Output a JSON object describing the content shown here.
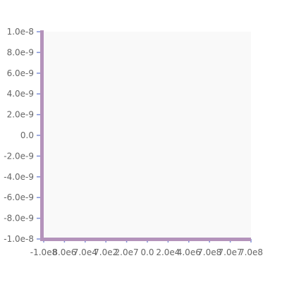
{
  "chart_data": {
    "type": "scatter",
    "title": "",
    "xlabel": "",
    "ylabel": "",
    "x": [],
    "y": [],
    "xlim": [
      -1e-08,
      1e-08
    ],
    "ylim": [
      -1e-08,
      1e-08
    ],
    "x_tick_labels": [
      "-1.0e8",
      "8.0e6",
      "7.0e4",
      "7.0e2",
      "2.0e7",
      "0.0",
      "2.0e4",
      "4.0e6",
      "7.0e8",
      "7.0e7",
      "7.0e8"
    ],
    "y_tick_labels": [
      "1.0e-8",
      "8.0e-9",
      "6.0e-9",
      "4.0e-9",
      "2.0e-9",
      "0.0",
      "-2.0e-9",
      "-4.0e-9",
      "-6.0e-9",
      "-8.0e-9",
      "-1.0e-8"
    ],
    "grid": false,
    "legend": "none",
    "colors": {
      "plot_background": "#f9f9f9",
      "axis": "#b493bb",
      "tick": "#7d8fd6",
      "tick_label": "#666666"
    }
  }
}
